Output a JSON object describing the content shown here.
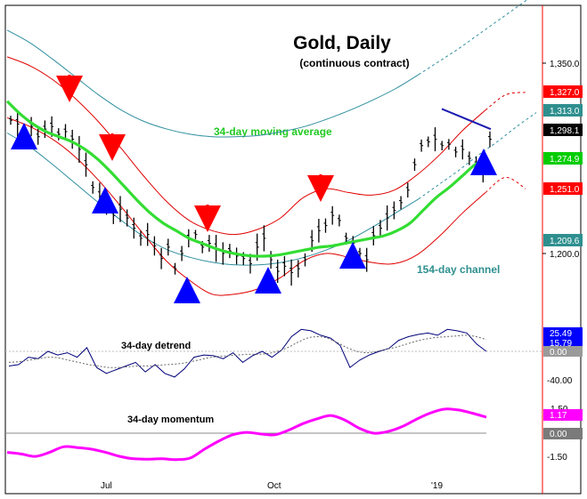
{
  "chart_data": {
    "type": "line",
    "title": "Gold, Daily",
    "subtitle": "(continuous contract)",
    "x_ticks": [
      "Jul",
      "Oct",
      "'19"
    ],
    "annotations": {
      "moving_average": "34-day moving average",
      "channel": "154-day channel",
      "detrend": "34-day detrend",
      "momentum": "34-day momentum"
    },
    "price_panel": {
      "y_ticks": [
        "1,350.0",
        "1,200.0"
      ],
      "price_tags": [
        {
          "text": "1,327.0",
          "color": "#ff0000"
        },
        {
          "text": "1,313.0",
          "color": "#2f8f8f"
        },
        {
          "text": "1,298.1",
          "color": "#000000"
        },
        {
          "text": "1,274.9",
          "color": "#00cc00"
        },
        {
          "text": "1,251.0",
          "color": "#ff0000"
        },
        {
          "text": "1,209.6",
          "color": "#2f8f8f"
        }
      ],
      "series": {
        "closes_approx": [
          1305,
          1302,
          1296,
          1300,
          1292,
          1298,
          1300,
          1294,
          1296,
          1290,
          1282,
          1270,
          1252,
          1245,
          1240,
          1230,
          1235,
          1228,
          1220,
          1212,
          1215,
          1206,
          1196,
          1205,
          1188,
          1200,
          1212,
          1215,
          1205,
          1208,
          1204,
          1200,
          1202,
          1198,
          1196,
          1192,
          1205,
          1212,
          1195,
          1186,
          1190,
          1185,
          1188,
          1195,
          1210,
          1218,
          1222,
          1230,
          1226,
          1212,
          1208,
          1200,
          1195,
          1214,
          1220,
          1228,
          1234,
          1240,
          1250,
          1270,
          1285,
          1288,
          1290,
          1285,
          1286,
          1280,
          1282,
          1275,
          1270,
          1262,
          1290
        ],
        "ma34_approx": [
          1320,
          1310,
          1302,
          1296,
          1292,
          1288,
          1282,
          1274,
          1264,
          1253,
          1242,
          1232,
          1224,
          1218,
          1212,
          1208,
          1204,
          1201,
          1199,
          1198,
          1198,
          1199,
          1201,
          1203,
          1205,
          1206,
          1208,
          1210,
          1212,
          1214,
          1218,
          1224,
          1234,
          1244,
          1252,
          1261,
          1270,
          1275
        ],
        "channel_upper_approx": [
          1376,
          1366,
          1353,
          1339,
          1325,
          1313,
          1304,
          1298,
          1294,
          1292,
          1292,
          1293,
          1296,
          1300,
          1306,
          1313,
          1321,
          1330,
          1341,
          1351,
          1361,
          1372,
          1383,
          1394,
          1405
        ],
        "channel_lower_approx": [
          1295,
          1284,
          1270,
          1255,
          1240,
          1226,
          1213,
          1203,
          1197,
          1193,
          1191,
          1191,
          1193,
          1197,
          1203,
          1211,
          1221,
          1232,
          1243,
          1254,
          1265,
          1277,
          1288,
          1300,
          1311
        ],
        "band_upper_approx": [
          1355,
          1348,
          1337,
          1322,
          1304,
          1283,
          1261,
          1241,
          1226,
          1218,
          1215,
          1219,
          1228,
          1244,
          1251,
          1248,
          1246,
          1250,
          1262,
          1278,
          1297,
          1313,
          1325,
          1327
        ],
        "band_lower_approx": [
          1307,
          1300,
          1290,
          1276,
          1258,
          1237,
          1215,
          1194,
          1179,
          1168,
          1168,
          1172,
          1181,
          1194,
          1200,
          1197,
          1193,
          1192,
          1199,
          1214,
          1232,
          1248,
          1260,
          1251
        ],
        "trendline_approx": [
          1314,
          1298
        ]
      },
      "arrows_down": [
        5,
        10,
        21,
        34
      ],
      "arrows_up": [
        1,
        8,
        17,
        22,
        29,
        36,
        41
      ]
    },
    "detrend_panel": {
      "y_ticks": [
        "-40.00"
      ],
      "value_tags": [
        {
          "text": "25.49",
          "color": "#0000ff"
        },
        {
          "text": "15.79",
          "color": "#0000ff"
        },
        {
          "text": "0.00",
          "color": "#9a9a9a"
        }
      ],
      "series": {
        "detrend_approx": [
          -20,
          -18,
          -8,
          -10,
          0,
          -5,
          -2,
          -8,
          5,
          -22,
          -30,
          -25,
          -20,
          -15,
          -28,
          -18,
          -30,
          -35,
          -24,
          -8,
          -5,
          -6,
          -10,
          -2,
          -15,
          -6,
          0,
          -8,
          2,
          20,
          30,
          28,
          22,
          18,
          8,
          -22,
          -12,
          -5,
          0,
          4,
          15,
          20,
          23,
          25,
          22,
          30,
          28,
          25,
          10,
          0
        ],
        "smoothed_approx": [
          -15,
          -14,
          -12,
          -10,
          -8,
          -9,
          -12,
          -15,
          -18,
          -20,
          -22,
          -22,
          -21,
          -20,
          -20,
          -19,
          -18,
          -17,
          -15,
          -12,
          -9,
          -7,
          -6,
          -5,
          -4,
          -4,
          -3,
          0,
          5,
          12,
          18,
          20,
          18,
          12,
          5,
          0,
          -2,
          0,
          3,
          6,
          10,
          14,
          17,
          19,
          20,
          21,
          22,
          20,
          16
        ]
      }
    },
    "momentum_panel": {
      "y_ticks": [
        "1.50",
        "-1.50"
      ],
      "value_tags": [
        {
          "text": "1.17",
          "color": "#ff00ff"
        },
        {
          "text": "0.00",
          "color": "#7a7a7a"
        }
      ],
      "series": {
        "momentum_approx": [
          -1.2,
          -1.3,
          -1.45,
          -1.2,
          -0.85,
          -0.9,
          -1.0,
          -1.2,
          -1.45,
          -1.6,
          -1.62,
          -1.6,
          -1.65,
          -1.55,
          -1.0,
          -0.5,
          -0.1,
          0.05,
          -0.05,
          -0.1,
          0.2,
          0.6,
          0.9,
          1.1,
          0.8,
          0.3,
          0.0,
          0.1,
          0.4,
          0.85,
          1.25,
          1.5,
          1.45,
          1.25,
          1.0
        ]
      }
    }
  }
}
